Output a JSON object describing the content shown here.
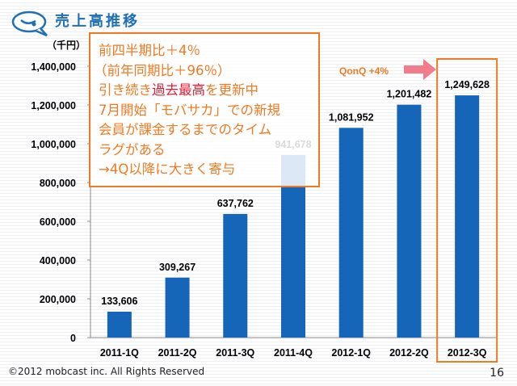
{
  "header": {
    "title": "売上高推移",
    "logo_icon": "speech-bubble-icon"
  },
  "annotation": {
    "lines": [
      "前四半期比＋4％",
      "（前年同期比＋96％）"
    ],
    "line3_pre": "引き続き",
    "line3_red": "過去最高",
    "line3_post": "を更新中",
    "lines2": [
      "7月開始「モバサカ」での新規",
      "会員が課金するまでのタイム",
      "ラグがある",
      "→4Q以降に大きく寄与"
    ]
  },
  "callout": {
    "label": "QonQ +4%",
    "arrow_color": "#f07c8c",
    "highlight_color": "#f07a22"
  },
  "footer": {
    "copyright": "©2012  mobcast inc. All Rights Reserved",
    "page": "16"
  },
  "chart_data": {
    "type": "bar",
    "ylabel": "（千円）",
    "categories": [
      "2011-1Q",
      "2011-2Q",
      "2011-3Q",
      "2011-4Q",
      "2012-1Q",
      "2012-2Q",
      "2012-3Q"
    ],
    "values": [
      133606,
      309267,
      637762,
      941678,
      1081952,
      1201482,
      1249628
    ],
    "data_labels": [
      "133,606",
      "309,267",
      "637,762",
      "941,678",
      "1,081,952",
      "1,201,482",
      "1,249,628"
    ],
    "yticks": [
      0,
      200000,
      400000,
      600000,
      800000,
      1000000,
      1200000,
      1400000
    ],
    "ytick_labels": [
      "0",
      "200,000",
      "400,000",
      "600,000",
      "800,000",
      "1,000,000",
      "1,200,000",
      "1,400,000"
    ],
    "ylim": [
      0,
      1400000
    ],
    "bar_color": "#1565b8",
    "highlighted_category": "2012-3Q",
    "grid": false
  }
}
